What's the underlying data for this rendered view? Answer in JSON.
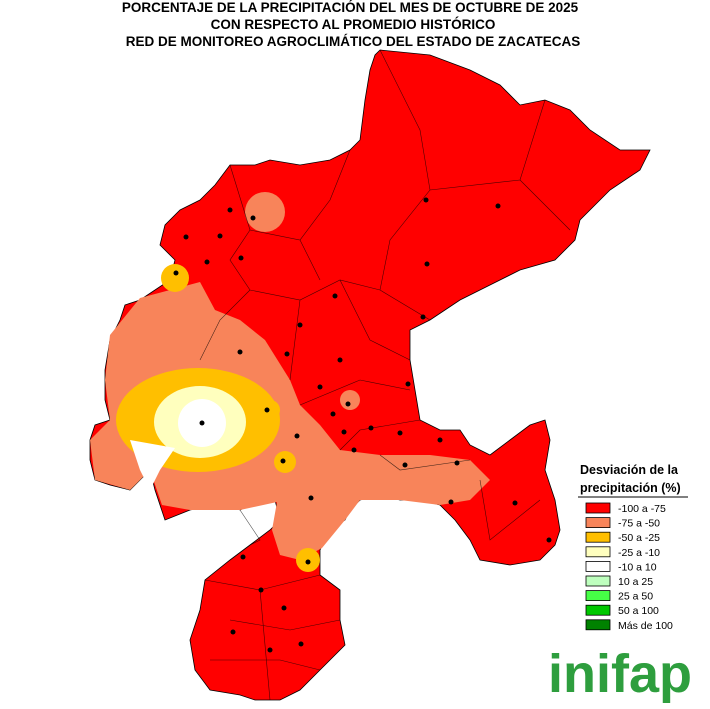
{
  "title": [
    "PORCENTAJE DE LA PRECIPITACIÓN DEL MES DE OCTUBRE DE 2025",
    "CON RESPECTO AL PROMEDIO HISTÓRICO",
    "RED DE MONITOREO AGROCLIMÁTICO DEL ESTADO DE ZACATECAS"
  ],
  "legend": {
    "title": [
      "Desviación de la",
      "precipitación (%)"
    ],
    "items": [
      {
        "label": "-100 a -75",
        "color": "#ff0000"
      },
      {
        "label": "-75 a -50",
        "color": "#f8845a"
      },
      {
        "label": "-50 a -25",
        "color": "#ffbf00"
      },
      {
        "label": "-25 a -10",
        "color": "#ffffbe"
      },
      {
        "label": "-10 a 10",
        "color": "#ffffff"
      },
      {
        "label": "10 a 25",
        "color": "#beffbe"
      },
      {
        "label": "25 a 50",
        "color": "#46ff46"
      },
      {
        "label": "50 a 100",
        "color": "#00c800"
      },
      {
        "label": "Más de 100",
        "color": "#008200"
      }
    ]
  },
  "logo": "inifap"
}
